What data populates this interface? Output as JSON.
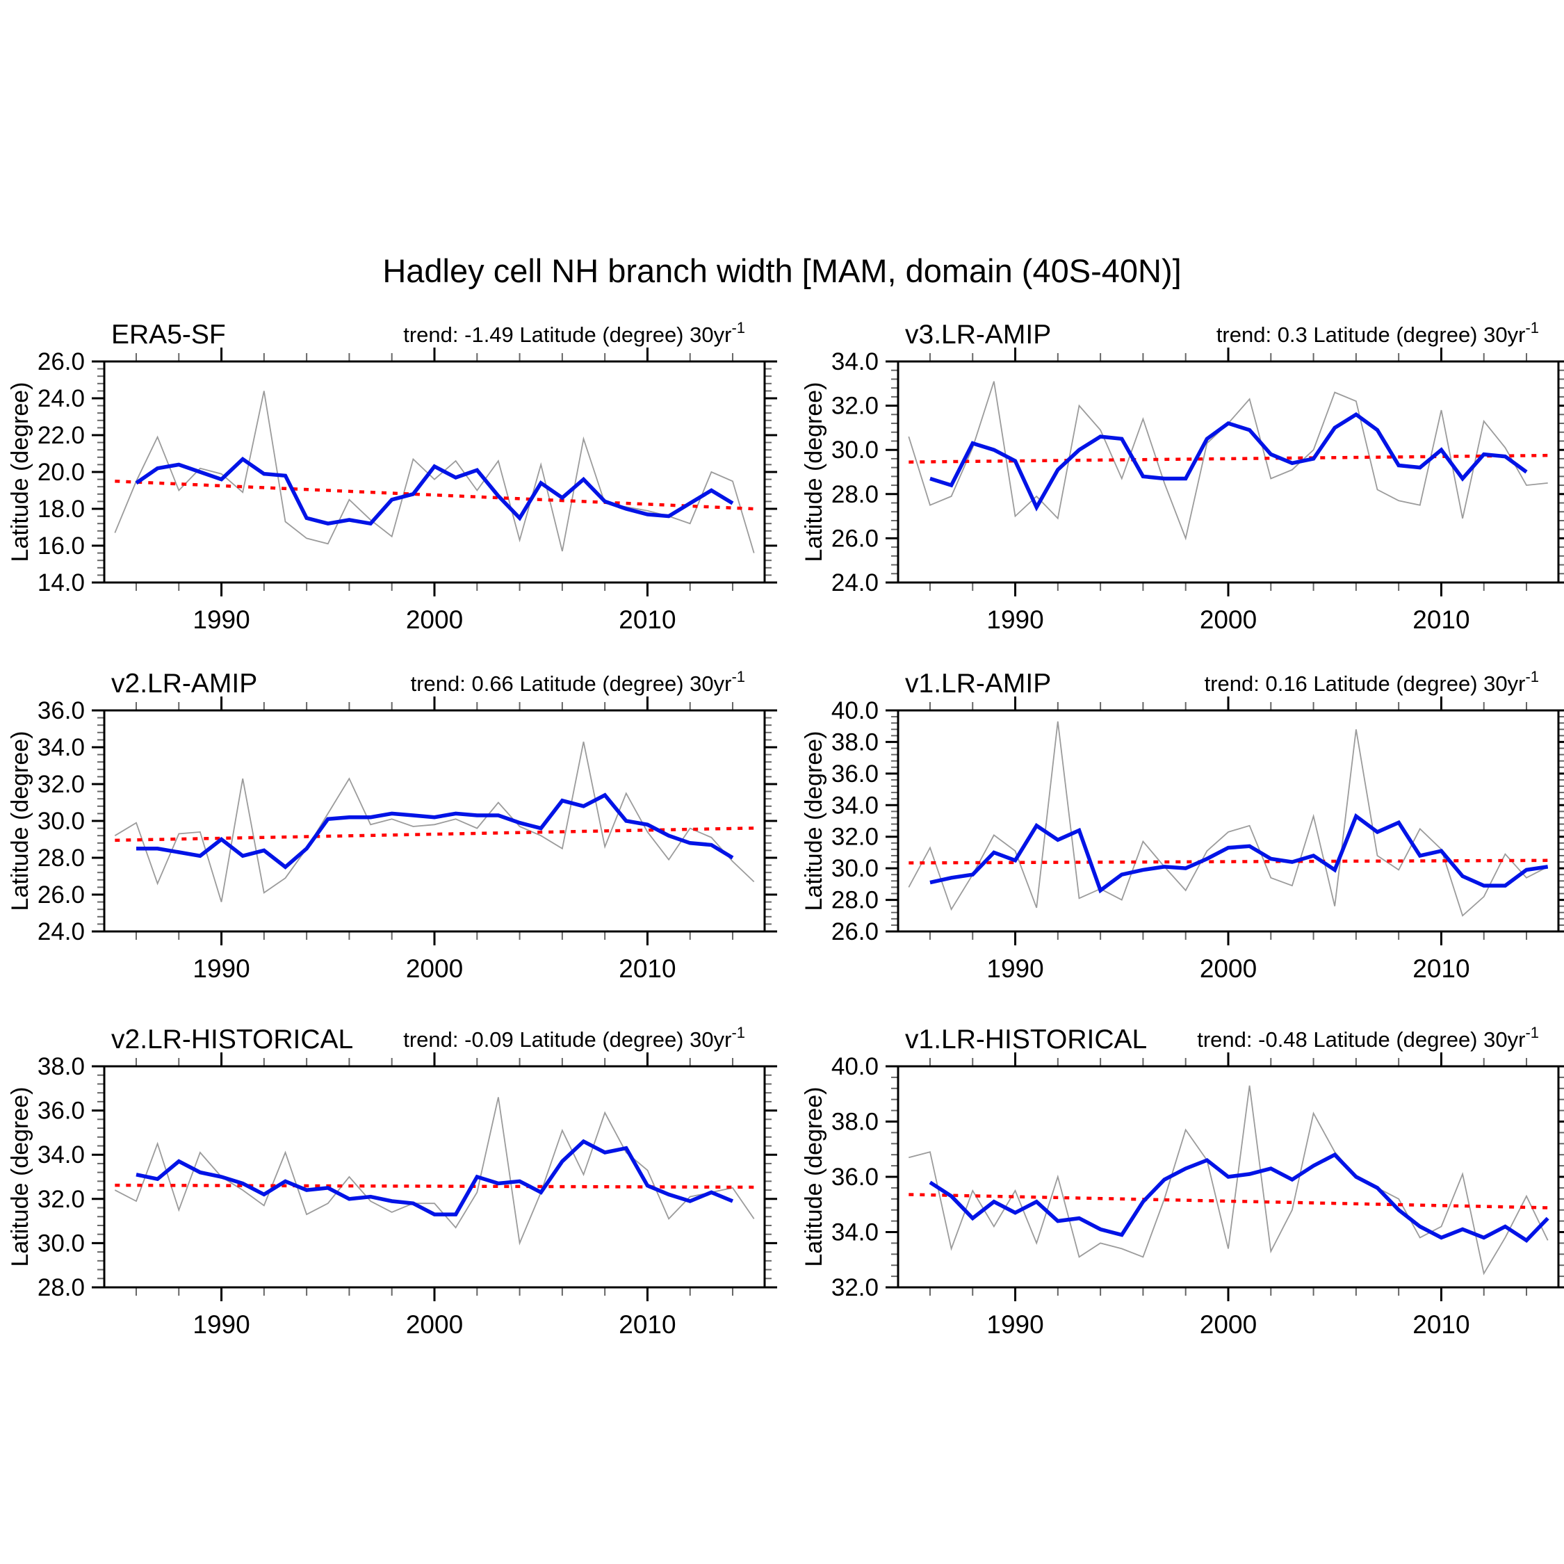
{
  "figure_title": "Hadley cell NH branch width [MAM, domain (40S-40N)]",
  "colors": {
    "background": "#ffffff",
    "text": "#000000",
    "axis": "#000000",
    "annual_line": "#9b9b9b",
    "smoothed_line": "#0013e6",
    "trend_line": "#ff0000"
  },
  "axes_common": {
    "ylabel": "Latitude (degree)",
    "x_major_ticks": [
      1990,
      2000,
      2010
    ],
    "x_minor_step_years": 2,
    "y_minor_step_degrees": 0.4,
    "x_domain": [
      1984.5,
      2015.5
    ],
    "grid": "off",
    "legend": "none"
  },
  "chart_data": [
    {
      "type": "line",
      "id": "era5-sf",
      "title": "ERA5-SF",
      "trend_text": "trend: -1.49 Latitude (degree) 30yr",
      "trend_superscript": "-1",
      "trend_per_30yr": -1.49,
      "ylim": [
        14,
        26
      ],
      "y_major_step": 2,
      "series": [
        {
          "name": "annual",
          "start_year": 1985,
          "values": [
            16.7,
            19.5,
            21.9,
            19.0,
            20.2,
            19.9,
            18.9,
            24.4,
            17.3,
            16.4,
            16.1,
            18.5,
            17.4,
            16.5,
            20.7,
            19.6,
            20.6,
            19.0,
            20.6,
            16.3,
            20.4,
            15.7,
            21.8,
            18.3,
            18.1,
            17.9,
            17.6,
            17.2,
            20.0,
            19.5,
            15.6
          ]
        },
        {
          "name": "smoothed",
          "start_year": 1986,
          "values": [
            19.4,
            20.2,
            20.4,
            20.0,
            19.6,
            20.7,
            19.9,
            19.8,
            17.5,
            17.2,
            17.4,
            17.2,
            18.5,
            18.8,
            20.3,
            19.7,
            20.1,
            18.7,
            17.5,
            19.4,
            18.6,
            19.6,
            18.4,
            18.0,
            17.7,
            17.6,
            18.3,
            19.0,
            18.3
          ]
        },
        {
          "name": "trend",
          "x": [
            1985,
            2015
          ],
          "y": [
            19.5,
            18.0
          ]
        }
      ]
    },
    {
      "type": "line",
      "id": "v3-lr-amip",
      "title": "v3.LR-AMIP",
      "trend_text": "trend: 0.3 Latitude (degree) 30yr",
      "trend_superscript": "-1",
      "trend_per_30yr": 0.3,
      "ylim": [
        24,
        34
      ],
      "y_major_step": 2,
      "series": [
        {
          "name": "annual",
          "start_year": 1985,
          "values": [
            30.6,
            27.5,
            27.9,
            30.1,
            33.1,
            27.0,
            27.9,
            26.9,
            32.0,
            30.9,
            28.7,
            31.4,
            28.5,
            26.0,
            30.3,
            31.2,
            32.3,
            28.7,
            29.1,
            30.0,
            32.6,
            32.2,
            28.2,
            27.7,
            27.5,
            31.8,
            26.9,
            31.3,
            30.1,
            28.4,
            28.5
          ]
        },
        {
          "name": "smoothed",
          "start_year": 1986,
          "values": [
            28.7,
            28.4,
            30.3,
            30.0,
            29.5,
            27.4,
            29.1,
            30.0,
            30.6,
            30.5,
            28.8,
            28.7,
            28.7,
            30.5,
            31.2,
            30.9,
            29.8,
            29.4,
            29.6,
            31.0,
            31.6,
            30.9,
            29.3,
            29.2,
            30.0,
            28.7,
            29.8,
            29.7,
            29.0
          ]
        },
        {
          "name": "trend",
          "x": [
            1985,
            2015
          ],
          "y": [
            29.45,
            29.75
          ]
        }
      ]
    },
    {
      "type": "line",
      "id": "v2-lr-amip",
      "title": "v2.LR-AMIP",
      "trend_text": "trend: 0.66 Latitude (degree) 30yr",
      "trend_superscript": "-1",
      "trend_per_30yr": 0.66,
      "ylim": [
        24,
        36
      ],
      "y_major_step": 2,
      "series": [
        {
          "name": "annual",
          "start_year": 1985,
          "values": [
            29.2,
            29.9,
            26.6,
            29.3,
            29.4,
            25.6,
            32.3,
            26.1,
            26.9,
            28.5,
            30.4,
            32.3,
            29.8,
            30.1,
            29.7,
            29.8,
            30.1,
            29.6,
            31.0,
            29.7,
            29.2,
            28.5,
            34.3,
            28.6,
            31.5,
            29.4,
            27.9,
            29.6,
            29.1,
            27.8,
            26.7
          ]
        },
        {
          "name": "smoothed",
          "start_year": 1986,
          "values": [
            28.5,
            28.5,
            28.3,
            28.1,
            29.0,
            28.1,
            28.4,
            27.5,
            28.5,
            30.1,
            30.2,
            30.2,
            30.4,
            30.3,
            30.2,
            30.4,
            30.3,
            30.3,
            29.9,
            29.6,
            31.1,
            30.8,
            31.4,
            30.0,
            29.8,
            29.2,
            28.8,
            28.7,
            28.0
          ]
        },
        {
          "name": "trend",
          "x": [
            1985,
            2015
          ],
          "y": [
            28.95,
            29.61
          ]
        }
      ]
    },
    {
      "type": "line",
      "id": "v1-lr-amip",
      "title": "v1.LR-AMIP",
      "trend_text": "trend: 0.16 Latitude (degree) 30yr",
      "trend_superscript": "-1",
      "trend_per_30yr": 0.16,
      "ylim": [
        26,
        40
      ],
      "y_major_step": 2,
      "series": [
        {
          "name": "annual",
          "start_year": 1985,
          "values": [
            28.8,
            31.3,
            27.4,
            29.6,
            32.1,
            31.1,
            27.5,
            39.3,
            28.1,
            28.7,
            28.0,
            31.7,
            30.1,
            28.6,
            31.1,
            32.3,
            32.7,
            29.4,
            28.9,
            33.3,
            27.6,
            38.8,
            30.8,
            29.9,
            32.5,
            31.2,
            27.0,
            28.2,
            30.9,
            29.4,
            30.1
          ]
        },
        {
          "name": "smoothed",
          "start_year": 1986,
          "values": [
            29.1,
            29.4,
            29.6,
            31.0,
            30.5,
            32.7,
            31.8,
            32.4,
            28.6,
            29.6,
            29.9,
            30.1,
            30.0,
            30.6,
            31.3,
            31.4,
            30.6,
            30.4,
            30.8,
            29.9,
            33.3,
            32.3,
            32.9,
            30.8,
            31.1,
            29.5,
            28.9,
            28.9,
            29.9,
            30.1
          ]
        },
        {
          "name": "trend",
          "x": [
            1985,
            2015
          ],
          "y": [
            30.34,
            30.5
          ]
        }
      ]
    },
    {
      "type": "line",
      "id": "v2-lr-historical",
      "title": "v2.LR-HISTORICAL",
      "trend_text": "trend: -0.09 Latitude (degree) 30yr",
      "trend_superscript": "-1",
      "trend_per_30yr": -0.09,
      "ylim": [
        28,
        38
      ],
      "y_major_step": 2,
      "series": [
        {
          "name": "annual",
          "start_year": 1985,
          "values": [
            32.4,
            31.9,
            34.5,
            31.5,
            34.1,
            33.0,
            32.4,
            31.7,
            34.1,
            31.3,
            31.8,
            33.0,
            31.9,
            31.4,
            31.8,
            31.8,
            30.7,
            32.3,
            36.6,
            30.0,
            32.3,
            35.1,
            33.1,
            35.9,
            34.1,
            33.3,
            31.1,
            32.1,
            32.3,
            32.5,
            31.1
          ]
        },
        {
          "name": "smoothed",
          "start_year": 1986,
          "values": [
            33.1,
            32.9,
            33.7,
            33.2,
            33.0,
            32.7,
            32.2,
            32.8,
            32.4,
            32.5,
            32.0,
            32.1,
            31.9,
            31.8,
            31.3,
            31.3,
            33.0,
            32.7,
            32.8,
            32.3,
            33.7,
            34.6,
            34.1,
            34.3,
            32.6,
            32.2,
            31.9,
            32.3,
            31.9
          ]
        },
        {
          "name": "trend",
          "x": [
            1985,
            2015
          ],
          "y": [
            32.62,
            32.53
          ]
        }
      ]
    },
    {
      "type": "line",
      "id": "v1-lr-historical",
      "title": "v1.LR-HISTORICAL",
      "trend_text": "trend: -0.48 Latitude (degree) 30yr",
      "trend_superscript": "-1",
      "trend_per_30yr": -0.48,
      "ylim": [
        32,
        40
      ],
      "y_major_step": 2,
      "series": [
        {
          "name": "annual",
          "start_year": 1985,
          "values": [
            36.7,
            36.9,
            33.4,
            35.5,
            34.2,
            35.5,
            33.6,
            36.0,
            33.1,
            33.6,
            33.4,
            33.1,
            35.2,
            37.7,
            36.6,
            33.4,
            39.3,
            33.3,
            34.8,
            38.3,
            36.9,
            36.0,
            35.6,
            35.2,
            33.8,
            34.2,
            36.1,
            32.5,
            33.8,
            35.3,
            33.7
          ]
        },
        {
          "name": "smoothed",
          "start_year": 1986,
          "values": [
            35.8,
            35.3,
            34.5,
            35.1,
            34.7,
            35.1,
            34.4,
            34.5,
            34.1,
            33.9,
            35.1,
            35.9,
            36.3,
            36.6,
            36.0,
            36.1,
            36.3,
            35.9,
            36.4,
            36.8,
            36.0,
            35.6,
            34.8,
            34.2,
            33.8,
            34.1,
            33.8,
            34.2,
            33.7,
            34.5
          ]
        },
        {
          "name": "trend",
          "x": [
            1985,
            2015
          ],
          "y": [
            35.36,
            34.88
          ]
        }
      ]
    }
  ]
}
